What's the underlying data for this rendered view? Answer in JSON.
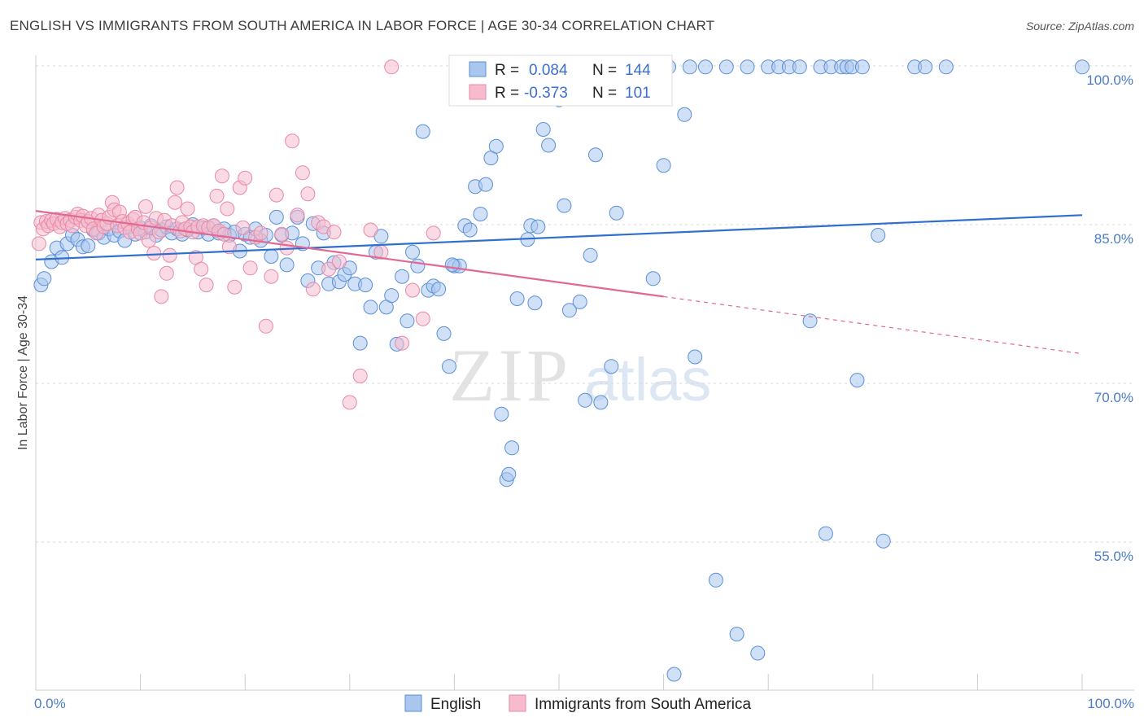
{
  "title": "ENGLISH VS IMMIGRANTS FROM SOUTH AMERICA IN LABOR FORCE | AGE 30-34 CORRELATION CHART",
  "source": "Source: ZipAtlas.com",
  "watermark": {
    "zip": "ZIP",
    "atlas": "atlas"
  },
  "legend": {
    "r_label": "R =",
    "n_label": "N =",
    "english": {
      "r": "0.084",
      "n": "144"
    },
    "immigrants": {
      "r": "-0.373",
      "n": "101"
    }
  },
  "colors": {
    "english_fill": "#a9c6ef",
    "english_stroke": "#5b8fd6",
    "english_line": "#2f6fd0",
    "immigrants_fill": "#f6bccd",
    "immigrants_stroke": "#e889a6",
    "immigrants_line": "#e06892"
  },
  "chart_data": {
    "type": "scatter",
    "title": "ENGLISH VS IMMIGRANTS FROM SOUTH AMERICA IN LABOR FORCE | AGE 30-34 CORRELATION CHART",
    "ylabel": "In Labor Force | Age 30-34",
    "xlabel": "",
    "xlim": [
      0,
      100
    ],
    "ylim": [
      41,
      101
    ],
    "x_tick_labels": [
      "0.0%",
      "100.0%"
    ],
    "y_ticks": [
      55,
      70,
      85,
      100
    ],
    "y_tick_labels": [
      "55.0%",
      "70.0%",
      "85.0%",
      "100.0%"
    ],
    "grid": "horizontal dashed",
    "legend_position": "top-center",
    "series": [
      {
        "name": "English",
        "r": 0.084,
        "n": 144,
        "trend": {
          "x": [
            0,
            100
          ],
          "y": [
            81.7,
            85.9
          ]
        },
        "points": [
          [
            0.5,
            79.3
          ],
          [
            0.8,
            79.9
          ],
          [
            1.5,
            81.5
          ],
          [
            2,
            82.8
          ],
          [
            2.5,
            81.9
          ],
          [
            3,
            83.2
          ],
          [
            3.5,
            84
          ],
          [
            4,
            83.6
          ],
          [
            4.5,
            82.9
          ],
          [
            5,
            83
          ],
          [
            5.5,
            84.5
          ],
          [
            6,
            84.2
          ],
          [
            6.5,
            83.8
          ],
          [
            7,
            84.6
          ],
          [
            7.5,
            84
          ],
          [
            8,
            84.4
          ],
          [
            8.5,
            83.5
          ],
          [
            9,
            84.8
          ],
          [
            9.5,
            84.1
          ],
          [
            10,
            84.7
          ],
          [
            10.5,
            84.3
          ],
          [
            11,
            84.9
          ],
          [
            11.5,
            84
          ],
          [
            12,
            84.5
          ],
          [
            12.5,
            84.8
          ],
          [
            13,
            84.2
          ],
          [
            13.5,
            84.6
          ],
          [
            14,
            84.1
          ],
          [
            14.5,
            84.5
          ],
          [
            15,
            85
          ],
          [
            15.5,
            84.3
          ],
          [
            16,
            84.7
          ],
          [
            16.5,
            84.1
          ],
          [
            17,
            84.9
          ],
          [
            17.5,
            84.2
          ],
          [
            18,
            84.6
          ],
          [
            18.5,
            84
          ],
          [
            19,
            84.3
          ],
          [
            19.5,
            82.5
          ],
          [
            20,
            84.1
          ],
          [
            20.5,
            83.8
          ],
          [
            21,
            84.6
          ],
          [
            21.5,
            83.5
          ],
          [
            22,
            84
          ],
          [
            22.5,
            82
          ],
          [
            23,
            85.7
          ],
          [
            23.5,
            84
          ],
          [
            24,
            81.2
          ],
          [
            24.5,
            84.2
          ],
          [
            25,
            85.7
          ],
          [
            25.5,
            83.2
          ],
          [
            26,
            79.7
          ],
          [
            26.5,
            85.1
          ],
          [
            27,
            80.9
          ],
          [
            27.5,
            84.2
          ],
          [
            28,
            79.4
          ],
          [
            28.5,
            81.4
          ],
          [
            29,
            79.6
          ],
          [
            29.5,
            80.3
          ],
          [
            30,
            80.9
          ],
          [
            30.5,
            79.4
          ],
          [
            31,
            73.8
          ],
          [
            31.5,
            79.3
          ],
          [
            32,
            77.2
          ],
          [
            32.5,
            82.4
          ],
          [
            33,
            83.9
          ],
          [
            33.5,
            77.2
          ],
          [
            34,
            78.3
          ],
          [
            34.5,
            73.7
          ],
          [
            35,
            80.1
          ],
          [
            35.5,
            75.9
          ],
          [
            36,
            82.4
          ],
          [
            36.5,
            81.1
          ],
          [
            37,
            93.8
          ],
          [
            37.5,
            78.8
          ],
          [
            38,
            79.2
          ],
          [
            38.5,
            78.9
          ],
          [
            39,
            74.7
          ],
          [
            39.5,
            71.6
          ],
          [
            40,
            81.1
          ],
          [
            40.5,
            81.1
          ],
          [
            41,
            84.9
          ],
          [
            41.5,
            84.5
          ],
          [
            42,
            88.6
          ],
          [
            42.5,
            86
          ],
          [
            43,
            88.8
          ],
          [
            43.5,
            91.3
          ],
          [
            44,
            92.4
          ],
          [
            44.5,
            67.1
          ],
          [
            45,
            60.9
          ],
          [
            45.2,
            61.4
          ],
          [
            45.5,
            63.9
          ],
          [
            46,
            78
          ],
          [
            47,
            83.6
          ],
          [
            47.3,
            84.9
          ],
          [
            47.7,
            77.6
          ],
          [
            48,
            84.8
          ],
          [
            48.5,
            94
          ],
          [
            49,
            92.5
          ],
          [
            49.5,
            99.9
          ],
          [
            50,
            96.8
          ],
          [
            50.5,
            86.8
          ],
          [
            51,
            76.9
          ],
          [
            51.5,
            99.9
          ],
          [
            52,
            77.7
          ],
          [
            52.5,
            68.4
          ],
          [
            53,
            82.1
          ],
          [
            53.5,
            91.6
          ],
          [
            54,
            68.2
          ],
          [
            54.5,
            99.9
          ],
          [
            55,
            71.6
          ],
          [
            55.5,
            86.1
          ],
          [
            56,
            99.9
          ],
          [
            57,
            99.9
          ],
          [
            58,
            99.9
          ],
          [
            59,
            79.9
          ],
          [
            60,
            90.6
          ],
          [
            60.5,
            99.9
          ],
          [
            61,
            42.5
          ],
          [
            62,
            95.4
          ],
          [
            62.5,
            99.9
          ],
          [
            63,
            72.5
          ],
          [
            64,
            99.9
          ],
          [
            65,
            51.4
          ],
          [
            66,
            99.9
          ],
          [
            67,
            46.3
          ],
          [
            68,
            99.9
          ],
          [
            69,
            44.5
          ],
          [
            70,
            99.9
          ],
          [
            71,
            99.9
          ],
          [
            72,
            99.9
          ],
          [
            73,
            99.9
          ],
          [
            74,
            75.9
          ],
          [
            75,
            99.9
          ],
          [
            75.5,
            55.8
          ],
          [
            76,
            99.9
          ],
          [
            77,
            99.9
          ],
          [
            77.5,
            99.9
          ],
          [
            78,
            99.9
          ],
          [
            78.5,
            70.3
          ],
          [
            79,
            99.9
          ],
          [
            80.5,
            84
          ],
          [
            81,
            55.1
          ],
          [
            84,
            99.9
          ],
          [
            85,
            99.9
          ],
          [
            87,
            99.9
          ],
          [
            100,
            99.9
          ],
          [
            39.8,
            81.2
          ]
        ]
      },
      {
        "name": "Immigrants from South America",
        "r": -0.373,
        "n": 101,
        "trend": {
          "x": [
            0,
            60
          ],
          "y": [
            86.3,
            78.2
          ]
        },
        "trend_extended": {
          "x": [
            60,
            100
          ],
          "y": [
            78.2,
            72.8
          ]
        },
        "points": [
          [
            0.3,
            83.2
          ],
          [
            0.5,
            85.2
          ],
          [
            0.7,
            84.6
          ],
          [
            1,
            85.3
          ],
          [
            1.2,
            84.9
          ],
          [
            1.5,
            85.4
          ],
          [
            1.7,
            85.1
          ],
          [
            2,
            85.5
          ],
          [
            2.3,
            84.8
          ],
          [
            2.5,
            85.2
          ],
          [
            2.8,
            85.6
          ],
          [
            3,
            85.1
          ],
          [
            3.3,
            85.4
          ],
          [
            3.5,
            84.9
          ],
          [
            3.8,
            85.7
          ],
          [
            4,
            86
          ],
          [
            4.3,
            85.4
          ],
          [
            4.5,
            85.8
          ],
          [
            4.8,
            84.9
          ],
          [
            5,
            85.3
          ],
          [
            5.3,
            85.6
          ],
          [
            5.5,
            84.6
          ],
          [
            5.8,
            84.2
          ],
          [
            6,
            85.9
          ],
          [
            6.3,
            85.4
          ],
          [
            6.5,
            84.8
          ],
          [
            6.8,
            85.1
          ],
          [
            7,
            85.7
          ],
          [
            7.3,
            87.1
          ],
          [
            7.5,
            86.4
          ],
          [
            7.8,
            84.9
          ],
          [
            8,
            86.2
          ],
          [
            8.3,
            85.3
          ],
          [
            8.5,
            84.7
          ],
          [
            8.8,
            85.1
          ],
          [
            9,
            84.3
          ],
          [
            9.3,
            85.5
          ],
          [
            9.5,
            85.7
          ],
          [
            9.8,
            84.6
          ],
          [
            10,
            84.2
          ],
          [
            10.3,
            85.2
          ],
          [
            10.5,
            86.7
          ],
          [
            10.8,
            83.5
          ],
          [
            11,
            84.7
          ],
          [
            11.3,
            82.3
          ],
          [
            11.5,
            85.6
          ],
          [
            11.8,
            84.3
          ],
          [
            12,
            78.2
          ],
          [
            12.3,
            85.4
          ],
          [
            12.5,
            80.4
          ],
          [
            12.8,
            82.1
          ],
          [
            13,
            84.9
          ],
          [
            13.3,
            87.1
          ],
          [
            13.5,
            88.5
          ],
          [
            13.8,
            84.4
          ],
          [
            14,
            85.2
          ],
          [
            14.3,
            84.6
          ],
          [
            14.5,
            86.5
          ],
          [
            14.8,
            84.8
          ],
          [
            15,
            84.3
          ],
          [
            15.3,
            81.9
          ],
          [
            15.5,
            84.8
          ],
          [
            15.8,
            80.8
          ],
          [
            16,
            84.9
          ],
          [
            16.3,
            79.3
          ],
          [
            16.5,
            84.7
          ],
          [
            17,
            84.9
          ],
          [
            17.3,
            87.7
          ],
          [
            17.5,
            84.4
          ],
          [
            17.8,
            89.6
          ],
          [
            18,
            84.1
          ],
          [
            18.3,
            86.5
          ],
          [
            18.5,
            82.9
          ],
          [
            19,
            79.1
          ],
          [
            19.5,
            88.5
          ],
          [
            19.8,
            84.7
          ],
          [
            20,
            89.4
          ],
          [
            20.5,
            80.9
          ],
          [
            21,
            83.8
          ],
          [
            21.5,
            84.2
          ],
          [
            22,
            75.4
          ],
          [
            22.5,
            80.1
          ],
          [
            23,
            87.8
          ],
          [
            23.5,
            84.1
          ],
          [
            24,
            82.8
          ],
          [
            24.5,
            92.9
          ],
          [
            25,
            85.9
          ],
          [
            25.5,
            89.9
          ],
          [
            26,
            87.9
          ],
          [
            26.5,
            78.9
          ],
          [
            27,
            85.2
          ],
          [
            27.5,
            84.8
          ],
          [
            28,
            80.8
          ],
          [
            28.5,
            84.3
          ],
          [
            29,
            81.5
          ],
          [
            30,
            68.2
          ],
          [
            31,
            70.7
          ],
          [
            32,
            84.5
          ],
          [
            33,
            82.4
          ],
          [
            34,
            99.9
          ],
          [
            35,
            73.8
          ],
          [
            36,
            78.8
          ],
          [
            37,
            76.1
          ],
          [
            38,
            84.2
          ]
        ]
      }
    ]
  }
}
